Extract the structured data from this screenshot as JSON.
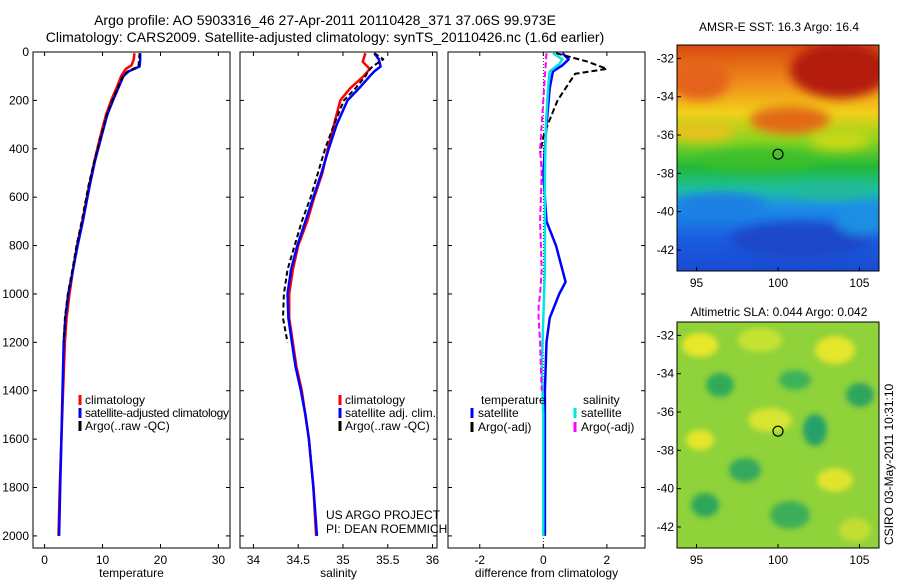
{
  "header": {
    "title_line1": "Argo profile: AO 5903316_46 27-Apr-2011 20110428_371 37.06S 99.973E",
    "title_line2": "Climatology: CARS2009. Satellite-adjusted climatology: synTS_20110426.nc (1.6d earlier)"
  },
  "footer": {
    "project": "US ARGO PROJECT",
    "pi": "PI: DEAN ROEMMICH",
    "credit": "CSIRO 03-May-2011 10:31:10"
  },
  "colors": {
    "climatology": "#ff0000",
    "satellite": "#0000ff",
    "argo": "#000000",
    "sat_salinity": "#00e5e5",
    "argo_salinity": "#ff00ff"
  },
  "chart_data": [
    {
      "id": "temperature",
      "type": "line",
      "xlabel": "temperature",
      "ylabel": "",
      "xlim": [
        -2,
        32
      ],
      "ylim": [
        2050,
        0
      ],
      "xticks": [
        0,
        10,
        20,
        30
      ],
      "yticks": [
        0,
        200,
        400,
        600,
        800,
        1000,
        1200,
        1400,
        1600,
        1800,
        2000
      ],
      "legend": [
        "climatology",
        "satellite-adjusted climatology",
        "Argo(..raw -QC)"
      ],
      "legend_position": "lower-right",
      "series": [
        {
          "name": "climatology",
          "color": "#ff0000",
          "width": 2.5,
          "dash": "",
          "depth": [
            5,
            30,
            55,
            70,
            100,
            150,
            200,
            260,
            350,
            450,
            550,
            700,
            800,
            900,
            1000,
            1100,
            1200,
            1400,
            1600,
            1800,
            2000
          ],
          "values": [
            15.5,
            15.4,
            15.0,
            14.0,
            13.2,
            12.4,
            11.5,
            10.6,
            9.6,
            8.6,
            7.7,
            6.5,
            5.6,
            4.9,
            4.3,
            3.8,
            3.5,
            3.2,
            2.9,
            2.6,
            2.4
          ]
        },
        {
          "name": "satellite-adjusted climatology",
          "color": "#0000ff",
          "width": 2.5,
          "dash": "",
          "depth": [
            5,
            30,
            60,
            80,
            100,
            150,
            200,
            260,
            350,
            450,
            550,
            700,
            800,
            900,
            1000,
            1100,
            1200,
            1400,
            1600,
            1800,
            2000
          ],
          "values": [
            16.5,
            16.5,
            16.4,
            14.5,
            13.6,
            12.7,
            11.8,
            10.8,
            9.8,
            8.7,
            7.8,
            6.6,
            5.7,
            4.9,
            4.1,
            3.6,
            3.3,
            3.1,
            2.9,
            2.7,
            2.5
          ]
        },
        {
          "name": "Argo(..raw -QC)",
          "color": "#000000",
          "width": 2,
          "dash": "5,3",
          "depth": [
            5,
            30,
            60,
            80,
            100,
            150,
            200,
            260,
            350,
            450,
            550,
            700,
            800,
            900,
            1000,
            1100,
            1200
          ],
          "values": [
            16.4,
            16.3,
            16.2,
            14.3,
            13.5,
            12.6,
            11.7,
            10.7,
            9.7,
            8.6,
            7.6,
            6.4,
            5.5,
            4.8,
            4.0,
            3.5,
            3.3
          ]
        }
      ]
    },
    {
      "id": "salinity",
      "type": "line",
      "xlabel": "salinity",
      "ylabel": "",
      "xlim": [
        33.85,
        36.05
      ],
      "ylim": [
        2050,
        0
      ],
      "xticks": [
        34,
        34.5,
        35,
        35.5,
        36
      ],
      "yticks": [
        0,
        200,
        400,
        600,
        800,
        1000,
        1200,
        1400,
        1600,
        1800,
        2000
      ],
      "legend": [
        "climatology",
        "satellite adj. clim.",
        "Argo(..raw -QC)"
      ],
      "legend_position": "lower-right",
      "series": [
        {
          "name": "climatology",
          "color": "#ff0000",
          "width": 2.5,
          "dash": "",
          "depth": [
            5,
            40,
            70,
            100,
            150,
            200,
            300,
            400,
            500,
            600,
            700,
            800,
            900,
            1000,
            1100,
            1200,
            1300,
            1400,
            1500,
            1600,
            1800,
            2000
          ],
          "values": [
            35.25,
            35.22,
            35.3,
            35.23,
            35.08,
            34.97,
            34.9,
            34.83,
            34.77,
            34.68,
            34.6,
            34.5,
            34.44,
            34.4,
            34.4,
            34.44,
            34.48,
            34.54,
            34.58,
            34.62,
            34.67,
            34.7
          ]
        },
        {
          "name": "satellite adj. clim.",
          "color": "#0000ff",
          "width": 2.5,
          "dash": "",
          "depth": [
            5,
            30,
            60,
            80,
            100,
            150,
            200,
            300,
            400,
            500,
            600,
            700,
            800,
            900,
            1000,
            1100,
            1200,
            1300,
            1400,
            1500,
            1600,
            1800,
            2000
          ],
          "values": [
            35.35,
            35.4,
            35.42,
            35.35,
            35.3,
            35.18,
            35.05,
            34.93,
            34.84,
            34.76,
            34.67,
            34.58,
            34.49,
            34.42,
            34.38,
            34.39,
            34.43,
            34.47,
            34.53,
            34.58,
            34.62,
            34.67,
            34.71
          ]
        },
        {
          "name": "Argo(..raw -QC)",
          "color": "#000000",
          "width": 2,
          "dash": "5,3",
          "depth": [
            5,
            30,
            60,
            80,
            100,
            150,
            200,
            300,
            400,
            500,
            600,
            700,
            800,
            900,
            1000,
            1100,
            1200
          ],
          "values": [
            35.35,
            35.45,
            35.33,
            35.28,
            35.25,
            35.14,
            35.01,
            34.9,
            34.8,
            34.72,
            34.64,
            34.54,
            34.46,
            34.38,
            34.34,
            34.33,
            34.38
          ]
        }
      ]
    },
    {
      "id": "difference",
      "type": "line",
      "xlabel": "difference from climatology",
      "ylabel": "",
      "xlim": [
        -3,
        3.2
      ],
      "ylim": [
        2050,
        0
      ],
      "xticks": [
        -2,
        0,
        2
      ],
      "yticks": [
        0,
        200,
        400,
        600,
        800,
        1000,
        1200,
        1400,
        1600,
        1800,
        2000
      ],
      "legend_groups": [
        "temperature",
        "salinity"
      ],
      "legend": [
        "satellite",
        "Argo(-adj)",
        "satellite",
        "Argo(-adj)"
      ],
      "legend_position": "lower-right",
      "series": [
        {
          "name": "temperature satellite",
          "color": "#0000ff",
          "width": 2.5,
          "dash": "",
          "depth": [
            5,
            30,
            55,
            80,
            150,
            300,
            500,
            700,
            800,
            900,
            950,
            1000,
            1100,
            1200,
            1400,
            1600,
            2000
          ],
          "values": [
            0.6,
            0.8,
            0.6,
            0.3,
            0.2,
            0.1,
            0.0,
            0.1,
            0.4,
            0.6,
            0.7,
            0.5,
            0.2,
            0.1,
            0.05,
            0.05,
            0.05
          ]
        },
        {
          "name": "temperature Argo(-adj)",
          "color": "#000000",
          "width": 2,
          "dash": "6,3",
          "depth": [
            5,
            40,
            70,
            90,
            130,
            200,
            280,
            350,
            420
          ],
          "values": [
            0.4,
            1.4,
            2.0,
            1.0,
            0.8,
            0.45,
            0.2,
            0.0,
            -0.1
          ]
        },
        {
          "name": "salinity satellite",
          "color": "#00e5e5",
          "width": 2.5,
          "dash": "",
          "depth": [
            5,
            30,
            50,
            80,
            150,
            300,
            500,
            700,
            900,
            1100,
            1300,
            1500,
            1800,
            2000
          ],
          "values": [
            0.3,
            0.6,
            0.5,
            0.2,
            0.15,
            0.08,
            0.05,
            0.05,
            0.05,
            0.0,
            -0.05,
            0.0,
            0.0,
            0.0
          ]
        },
        {
          "name": "salinity Argo(-adj)",
          "color": "#ff00ff",
          "width": 2,
          "dash": "6,3",
          "depth": [
            5,
            100,
            200,
            300,
            400,
            500,
            700,
            900,
            1000,
            1050,
            1100,
            1200,
            1300,
            1400
          ],
          "values": [
            0.1,
            0.05,
            0.0,
            -0.05,
            -0.1,
            -0.05,
            -0.1,
            -0.05,
            -0.1,
            -0.15,
            -0.15,
            -0.1,
            -0.08,
            -0.05
          ]
        }
      ]
    },
    {
      "id": "amsr-sst-map",
      "type": "heatmap",
      "title": "AMSR-E SST: 16.3 Argo: 16.4",
      "xlim": [
        93.8,
        106.2
      ],
      "ylim": [
        -43.1,
        -31.3
      ],
      "xticks": [
        95,
        100,
        105
      ],
      "yticks": [
        -32,
        -34,
        -36,
        -38,
        -40,
        -42
      ],
      "marker": {
        "lon": 100,
        "lat": -37
      },
      "colorscale": [
        "blue",
        "cyan",
        "green",
        "yellow",
        "orange",
        "red"
      ]
    },
    {
      "id": "altimetric-sla-map",
      "type": "heatmap",
      "title": "Altimetric SLA: 0.044 Argo: 0.042",
      "xlim": [
        93.8,
        106.2
      ],
      "ylim": [
        -43.1,
        -31.3
      ],
      "xticks": [
        95,
        100,
        105
      ],
      "yticks": [
        -32,
        -34,
        -36,
        -38,
        -40,
        -42
      ],
      "marker": {
        "lon": 100,
        "lat": -37
      },
      "colorscale": [
        "green",
        "yellow"
      ]
    }
  ]
}
